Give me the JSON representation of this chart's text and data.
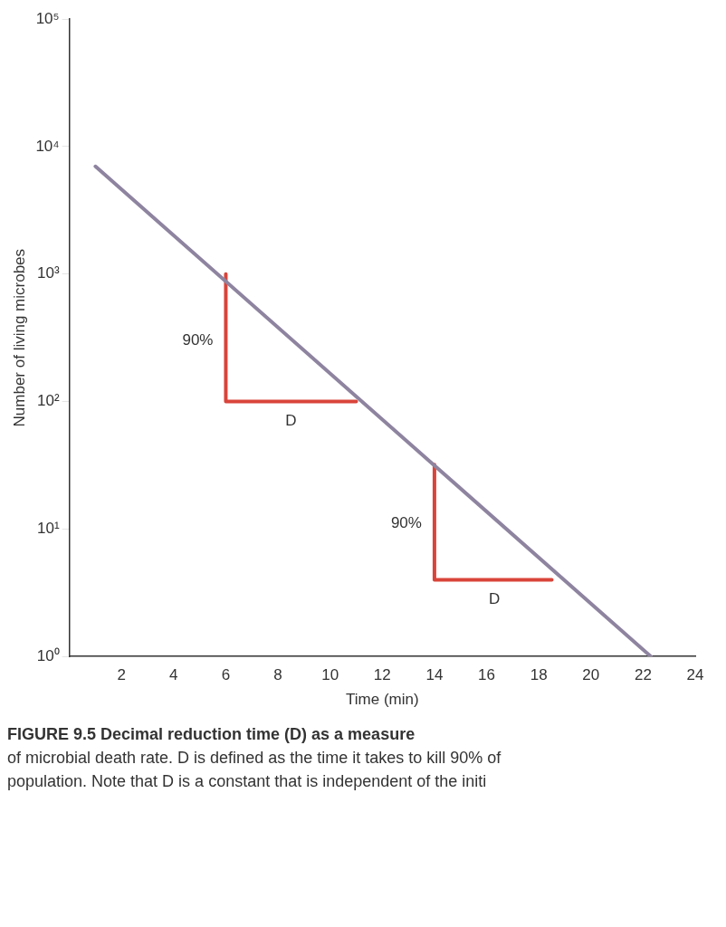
{
  "chart_data": {
    "type": "line",
    "xlabel": "Time (min)",
    "ylabel": "Number of living microbes",
    "xlim": [
      0,
      24
    ],
    "xticks": [
      2,
      4,
      6,
      8,
      10,
      12,
      14,
      16,
      18,
      20,
      22,
      24
    ],
    "ylim": [
      1,
      100000
    ],
    "log": "y",
    "yticks": [
      {
        "value": 1,
        "label": "10⁰"
      },
      {
        "value": 10,
        "label": "10¹"
      },
      {
        "value": 100,
        "label": "10²"
      },
      {
        "value": 1000,
        "label": "10³"
      },
      {
        "value": 10000,
        "label": "10⁴"
      },
      {
        "value": 100000,
        "label": "10⁵"
      }
    ],
    "series": [
      {
        "color": "#8e84a0",
        "x": [
          1,
          22.3
        ],
        "values": [
          7000,
          1
        ]
      },
      {
        "color": "#d9443a",
        "x": [
          6,
          6,
          11
        ],
        "values": [
          1000,
          100,
          100
        ]
      },
      {
        "color": "#d9443a",
        "x": [
          14,
          14,
          18.5
        ],
        "values": [
          32,
          4,
          4
        ]
      }
    ],
    "annotations": [
      {
        "text": "90%",
        "x": 6,
        "y": 300
      },
      {
        "text": "D",
        "x": 8.5,
        "y": 100
      },
      {
        "text": "90%",
        "x": 14,
        "y": 11
      },
      {
        "text": "D",
        "x": 16.3,
        "y": 4
      },
      "FIGURE 9.5 Decimal reduction time (D) as a measure",
      "of microbial death rate. D is defined as the time it takes to kill 90% of",
      "population. Note that D is a constant that is independent of the initi"
    ],
    "grid": false,
    "legend": false,
    "marker": "none",
    "line_style": "solid"
  }
}
